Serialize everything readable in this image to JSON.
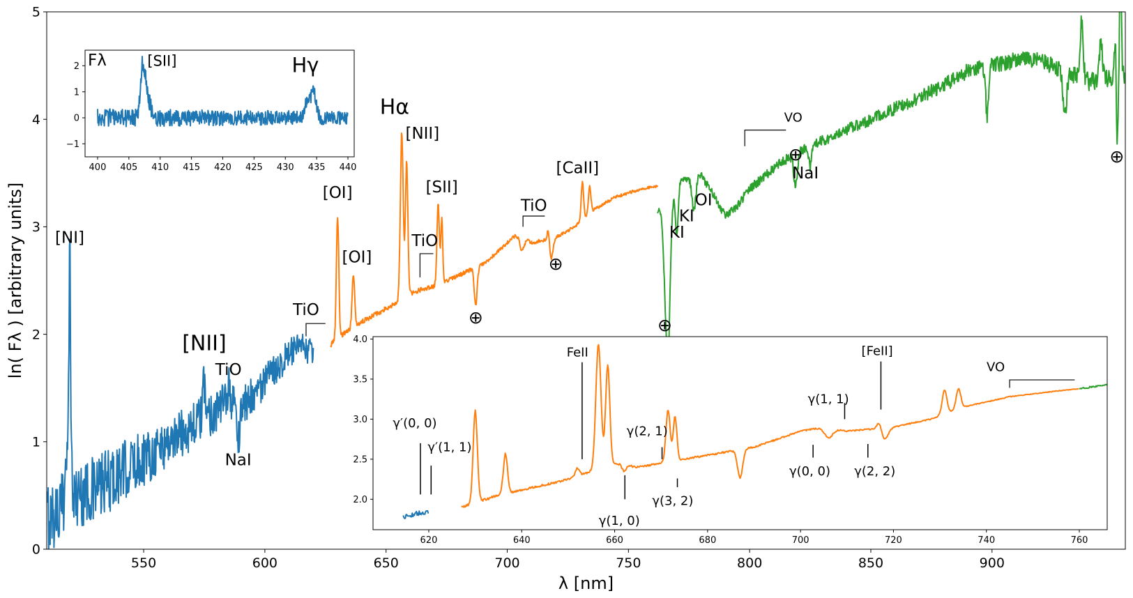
{
  "chart_data": [
    {
      "type": "line",
      "role": "main",
      "title": "",
      "xlabel": "λ [nm]",
      "ylabel": "ln( Fλ ) [arbitrary units]",
      "xlim": [
        510,
        955
      ],
      "ylim": [
        0,
        5
      ],
      "xticks": [
        "550",
        "600",
        "650",
        "700",
        "750",
        "800",
        "850",
        "900"
      ],
      "yticks": [
        "0",
        "1",
        "2",
        "3",
        "4",
        "5"
      ],
      "series": [
        {
          "name": "blue",
          "color": "#1f77b4",
          "x_range": [
            510,
            620
          ],
          "anchors": [
            [
              510,
              0.3
            ],
            [
              515,
              0.35
            ],
            [
              520,
              0.5
            ],
            [
              530,
              0.55
            ],
            [
              540,
              0.7
            ],
            [
              550,
              0.85
            ],
            [
              560,
              1.0
            ],
            [
              570,
              1.15
            ],
            [
              580,
              1.3
            ],
            [
              586,
              1.38
            ],
            [
              590,
              1.3
            ],
            [
              595,
              1.45
            ],
            [
              600,
              1.55
            ],
            [
              605,
              1.7
            ],
            [
              610,
              1.82
            ],
            [
              615,
              1.88
            ],
            [
              620,
              1.82
            ]
          ],
          "peaks": [
            [
              519.5,
              2.2,
              0.4
            ],
            [
              518,
              0.7,
              0.35
            ],
            [
              575,
              0.3,
              0.6
            ],
            [
              585,
              0.15,
              0.6
            ]
          ],
          "dips": [
            [
              589,
              0.32,
              0.5
            ]
          ],
          "noise": [
            0.35,
            0.12
          ]
        },
        {
          "name": "orange",
          "color": "#ff7f0e",
          "x_range": [
            627,
            762
          ],
          "anchors": [
            [
              627,
              1.9
            ],
            [
              635,
              2.05
            ],
            [
              645,
              2.18
            ],
            [
              655,
              2.3
            ],
            [
              660,
              2.38
            ],
            [
              665,
              2.42
            ],
            [
              670,
              2.45
            ],
            [
              680,
              2.55
            ],
            [
              690,
              2.65
            ],
            [
              700,
              2.85
            ],
            [
              705,
              2.95
            ],
            [
              710,
              2.85
            ],
            [
              720,
              2.9
            ],
            [
              728,
              3.0
            ],
            [
              735,
              3.15
            ],
            [
              745,
              3.28
            ],
            [
              755,
              3.35
            ],
            [
              762,
              3.38
            ]
          ],
          "peaks": [
            [
              630,
              1.15,
              0.5
            ],
            [
              636.5,
              0.5,
              0.5
            ],
            [
              656.5,
              1.55,
              0.6
            ],
            [
              658.5,
              1.25,
              0.5
            ],
            [
              671.5,
              0.75,
              0.5
            ],
            [
              673,
              0.6,
              0.4
            ],
            [
              731,
              0.35,
              0.5
            ],
            [
              734,
              0.25,
              0.5
            ],
            [
              717,
              0.15,
              0.5
            ]
          ],
          "dips": [
            [
              687,
              0.35,
              0.6
            ],
            [
              718,
              0.2,
              0.8
            ],
            [
              706,
              0.15,
              1.0
            ]
          ],
          "noise": [
            0.025,
            0.012
          ]
        },
        {
          "name": "green",
          "color": "#2ca02c",
          "x_range": [
            762,
            955
          ],
          "anchors": [
            [
              762,
              3.38
            ],
            [
              775,
              3.45
            ],
            [
              780,
              3.48
            ],
            [
              785,
              3.3
            ],
            [
              790,
              3.1
            ],
            [
              795,
              3.2
            ],
            [
              800,
              3.35
            ],
            [
              810,
              3.55
            ],
            [
              820,
              3.7
            ],
            [
              830,
              3.8
            ],
            [
              840,
              3.9
            ],
            [
              850,
              4.0
            ],
            [
              860,
              4.1
            ],
            [
              870,
              4.2
            ],
            [
              880,
              4.32
            ],
            [
              890,
              4.45
            ],
            [
              900,
              4.5
            ],
            [
              910,
              4.55
            ],
            [
              920,
              4.55
            ],
            [
              930,
              4.45
            ],
            [
              940,
              4.35
            ],
            [
              950,
              4.4
            ]
          ],
          "peaks": [
            [
              937,
              0.55,
              0.6
            ],
            [
              945,
              0.35,
              0.6
            ],
            [
              951,
              0.7,
              0.4
            ],
            [
              953,
              1.0,
              0.4
            ]
          ],
          "dips": [
            [
              761,
              0.3,
              2.0
            ],
            [
              766,
              1.4,
              1.2
            ],
            [
              769.9,
              0.5,
              0.6
            ],
            [
              766.5,
              0.3,
              0.6
            ],
            [
              777,
              0.3,
              0.8
            ],
            [
              819,
              0.3,
              0.8
            ],
            [
              825,
              0.2,
              0.6
            ],
            [
              898,
              0.45,
              0.6
            ],
            [
              930,
              0.4,
              0.8
            ],
            [
              951.5,
              0.8,
              0.5
            ]
          ],
          "noise": [
            0.03,
            0.09
          ]
        }
      ],
      "annotations": [
        {
          "text": "[NI]",
          "x": 519.5,
          "y": 2.85,
          "size": "ann"
        },
        {
          "text": "[NII]",
          "x": 575,
          "y": 1.85,
          "size": "annbig"
        },
        {
          "text": "TiO",
          "x": 585,
          "y": 1.62,
          "size": "ann"
        },
        {
          "text": "NaI",
          "x": 589,
          "y": 0.78,
          "size": "ann"
        },
        {
          "text": "TiO",
          "x": 617,
          "y": 2.18,
          "size": "ann"
        },
        {
          "text": "[OI]",
          "x": 630,
          "y": 3.27,
          "size": "ann"
        },
        {
          "text": "[OI]",
          "x": 638,
          "y": 2.67,
          "size": "ann"
        },
        {
          "text": "[SII]",
          "x": 673,
          "y": 3.32,
          "size": "ann"
        },
        {
          "text": "[NII]",
          "x": 665,
          "y": 3.82,
          "size": "ann"
        },
        {
          "text": "TiO",
          "x": 666,
          "y": 2.82,
          "size": "ann"
        },
        {
          "text": "TiO",
          "x": 711,
          "y": 3.15,
          "size": "ann"
        },
        {
          "text": "[CaII]",
          "x": 729,
          "y": 3.5,
          "size": "ann"
        },
        {
          "text": "KI",
          "x": 770,
          "y": 2.9,
          "size": "ann"
        },
        {
          "text": "KI",
          "x": 774,
          "y": 3.05,
          "size": "ann"
        },
        {
          "text": "OI",
          "x": 781,
          "y": 3.2,
          "size": "ann"
        },
        {
          "text": "VO",
          "x": 818,
          "y": 3.98,
          "size": "iann"
        },
        {
          "text": "NaI",
          "x": 823,
          "y": 3.45,
          "size": "ann"
        },
        {
          "text": "⊕",
          "x": 687,
          "y": 2.1,
          "size": "sym"
        },
        {
          "text": "⊕",
          "x": 720,
          "y": 2.6,
          "size": "sym"
        },
        {
          "text": "⊕",
          "x": 765,
          "y": 2.03,
          "size": "sym"
        },
        {
          "text": "⊕",
          "x": 819,
          "y": 3.62,
          "size": "sym"
        },
        {
          "text": "⊕",
          "x": 951.5,
          "y": 3.6,
          "size": "sym"
        }
      ],
      "brackets": [
        {
          "x1": 617,
          "x2": 625,
          "y": 2.1,
          "drop": 0.12
        },
        {
          "x1": 664,
          "x2": 669.5,
          "y": 2.75,
          "drop": 0.22
        },
        {
          "x1": 706.5,
          "x2": 715.5,
          "y": 3.1,
          "drop": 0.1
        },
        {
          "x1": 798,
          "x2": 815,
          "y": 3.9,
          "drop": 0.15
        }
      ],
      "overlays": [
        {
          "text": "Hα",
          "x": 653.5,
          "y": 4.05,
          "size": "annbig"
        }
      ]
    },
    {
      "type": "line",
      "role": "inset_top",
      "ylabel": "Fλ",
      "xlim": [
        398,
        441
      ],
      "ylim": [
        -1.5,
        2.6
      ],
      "xticks": [
        "400",
        "405",
        "410",
        "415",
        "420",
        "425",
        "430",
        "435",
        "440"
      ],
      "yticks": [
        "−1",
        "0",
        "1",
        "2"
      ],
      "series": [
        {
          "name": "blue",
          "color": "#1f77b4",
          "x_range": [
            400,
            440
          ],
          "anchors": [
            [
              400,
              0.0
            ],
            [
              440,
              0.0
            ]
          ],
          "peaks": [
            [
              407.2,
              2.0,
              0.35
            ],
            [
              407.8,
              0.8,
              0.3
            ],
            [
              434.5,
              1.1,
              0.4
            ],
            [
              433.5,
              0.6,
              0.4
            ],
            [
              408.4,
              0.4,
              0.3
            ]
          ],
          "dips": [],
          "noise": [
            0.35,
            0.25
          ]
        }
      ],
      "annotations": [
        {
          "text": "[SII]",
          "x": 410.3,
          "y": 2.0,
          "size": "inset_ann"
        },
        {
          "text": "Hγ",
          "x": 433.2,
          "y": 1.75,
          "size": "inset_big"
        }
      ]
    },
    {
      "type": "line",
      "role": "inset_bottom",
      "xlim": [
        608,
        766
      ],
      "ylim": [
        1.62,
        4.03
      ],
      "xticks": [
        "620",
        "640",
        "660",
        "680",
        "700",
        "720",
        "740",
        "760"
      ],
      "yticks": [
        "2.0",
        "2.5",
        "3.0",
        "3.5",
        "4.0"
      ],
      "series": [
        {
          "name": "blue",
          "color": "#1f77b4",
          "x_range": [
            614.5,
            620
          ],
          "anchors": [
            [
              614.5,
              1.78
            ],
            [
              617,
              1.82
            ],
            [
              620,
              1.84
            ]
          ],
          "peaks": [],
          "dips": [],
          "noise": [
            0.04,
            0.02
          ]
        },
        {
          "name": "orange",
          "color": "#ff7f0e",
          "x_range": [
            627,
            760
          ],
          "anchors": [
            [
              627,
              1.9
            ],
            [
              635,
              2.05
            ],
            [
              645,
              2.18
            ],
            [
              650,
              2.25
            ],
            [
              655,
              2.35
            ],
            [
              660,
              2.45
            ],
            [
              665,
              2.4
            ],
            [
              670,
              2.45
            ],
            [
              680,
              2.55
            ],
            [
              690,
              2.65
            ],
            [
              700,
              2.85
            ],
            [
              705,
              2.9
            ],
            [
              710,
              2.85
            ],
            [
              720,
              2.9
            ],
            [
              728,
              3.0
            ],
            [
              735,
              3.15
            ],
            [
              745,
              3.28
            ],
            [
              755,
              3.35
            ],
            [
              760,
              3.38
            ]
          ],
          "peaks": [
            [
              630,
              1.15,
              0.45
            ],
            [
              636.5,
              0.5,
              0.45
            ],
            [
              656.5,
              1.55,
              0.55
            ],
            [
              658.5,
              1.25,
              0.45
            ],
            [
              671.5,
              0.65,
              0.45
            ],
            [
              673,
              0.55,
              0.4
            ],
            [
              731,
              0.3,
              0.5
            ],
            [
              734,
              0.25,
              0.5
            ],
            [
              717,
              0.12,
              0.5
            ],
            [
              652,
              0.1,
              0.4
            ]
          ],
          "dips": [
            [
              687,
              0.35,
              0.55
            ],
            [
              718,
              0.15,
              0.8
            ],
            [
              706,
              0.12,
              0.9
            ],
            [
              662,
              0.08,
              0.4
            ]
          ],
          "noise": [
            0.015,
            0.004
          ]
        },
        {
          "name": "green",
          "color": "#2ca02c",
          "x_range": [
            760,
            766
          ],
          "anchors": [
            [
              760,
              3.38
            ],
            [
              766,
              3.43
            ]
          ],
          "peaks": [],
          "dips": [],
          "noise": [
            0.015,
            0.004
          ]
        }
      ],
      "annotations": [
        {
          "text": "γ′(0, 0)",
          "x": 617,
          "y": 2.9,
          "size": "iann"
        },
        {
          "text": "γ′(1, 1)",
          "x": 624.5,
          "y": 2.6,
          "size": "iann"
        },
        {
          "text": "FeII",
          "x": 652,
          "y": 3.78,
          "size": "iann"
        },
        {
          "text": "γ(2, 1)",
          "x": 667,
          "y": 2.8,
          "size": "iann"
        },
        {
          "text": "γ(1, 0)",
          "x": 661,
          "y": 1.68,
          "size": "iann"
        },
        {
          "text": "γ(3, 2)",
          "x": 672.5,
          "y": 1.93,
          "size": "iann"
        },
        {
          "text": "γ(1, 1)",
          "x": 706,
          "y": 3.2,
          "size": "iann"
        },
        {
          "text": "[FeII]",
          "x": 716.5,
          "y": 3.8,
          "size": "iann"
        },
        {
          "text": "γ(0, 0)",
          "x": 702,
          "y": 2.3,
          "size": "iann"
        },
        {
          "text": "γ(2, 2)",
          "x": 716,
          "y": 2.3,
          "size": "iann"
        },
        {
          "text": "VO",
          "x": 742,
          "y": 3.6,
          "size": "iann"
        }
      ],
      "markers": [
        {
          "x": 618.2,
          "y1": 2.06,
          "y2": 2.7
        },
        {
          "x": 620.5,
          "y1": 2.06,
          "y2": 2.42
        },
        {
          "x": 653,
          "y1": 2.5,
          "y2": 3.71
        },
        {
          "x": 662.2,
          "y1": 2.0,
          "y2": 2.3
        },
        {
          "x": 670.2,
          "y1": 2.5,
          "y2": 2.65
        },
        {
          "x": 673.5,
          "y1": 2.15,
          "y2": 2.26
        },
        {
          "x": 702.7,
          "y1": 2.52,
          "y2": 2.68
        },
        {
          "x": 709.5,
          "y1": 3.0,
          "y2": 3.2
        },
        {
          "x": 714.5,
          "y1": 2.52,
          "y2": 2.69
        },
        {
          "x": 717.3,
          "y1": 3.12,
          "y2": 3.72
        }
      ],
      "brackets": [
        {
          "x1": 745,
          "x2": 759,
          "y": 3.49,
          "drop": 0.1
        }
      ]
    }
  ]
}
